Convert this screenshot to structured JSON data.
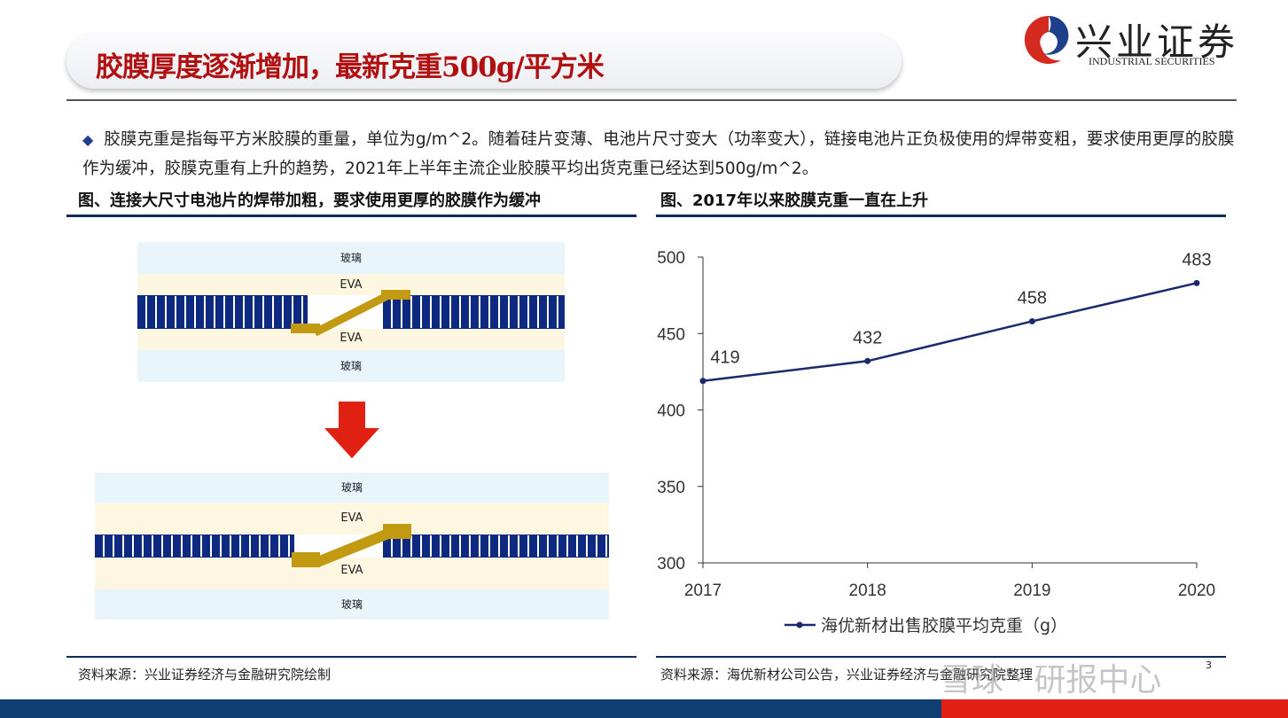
{
  "header": {
    "title": "胶膜厚度逐渐增加，最新克重500g/平方米",
    "logo_cn": "兴业证券",
    "logo_en": "INDUSTRIAL SECURITIES"
  },
  "bullet": {
    "text": "胶膜克重是指每平方米胶膜的重量，单位为g/m^2。随着硅片变薄、电池片尺寸变大（功率变大），链接电池片正负极使用的焊带变粗，要求使用更厚的胶膜作为缓冲，胶膜克重有上升的趋势，2021年上半年主流企业胶膜平均出货克重已经达到500g/m^2。"
  },
  "left": {
    "heading": "图、连接大尺寸电池片的焊带加粗，要求使用更厚的胶膜作为缓冲",
    "glass": "玻璃",
    "eva": "EVA",
    "source": "资料来源：兴业证券经济与金融研究院绘制"
  },
  "right": {
    "heading": "图、2017年以来胶膜克重一直在上升",
    "source": "资料来源：海优新材公司公告，兴业证券经济与金融研究院整理"
  },
  "chart_data": {
    "type": "line",
    "x": [
      "2017",
      "2018",
      "2019",
      "2020"
    ],
    "series": [
      {
        "name": "海优新材出售胶膜平均克重（g）",
        "values": [
          419,
          432,
          458,
          483
        ],
        "color": "#1a2a6c"
      }
    ],
    "ylim": [
      300,
      500
    ],
    "yticks": [
      300,
      350,
      400,
      450,
      500
    ],
    "legend": "bottom",
    "grid": false
  },
  "footer": {
    "page": "3",
    "watermark": "雪球 · 研报中心"
  },
  "colors": {
    "title": "#b01010",
    "navy": "#0f2b5c",
    "red": "#e02010"
  }
}
